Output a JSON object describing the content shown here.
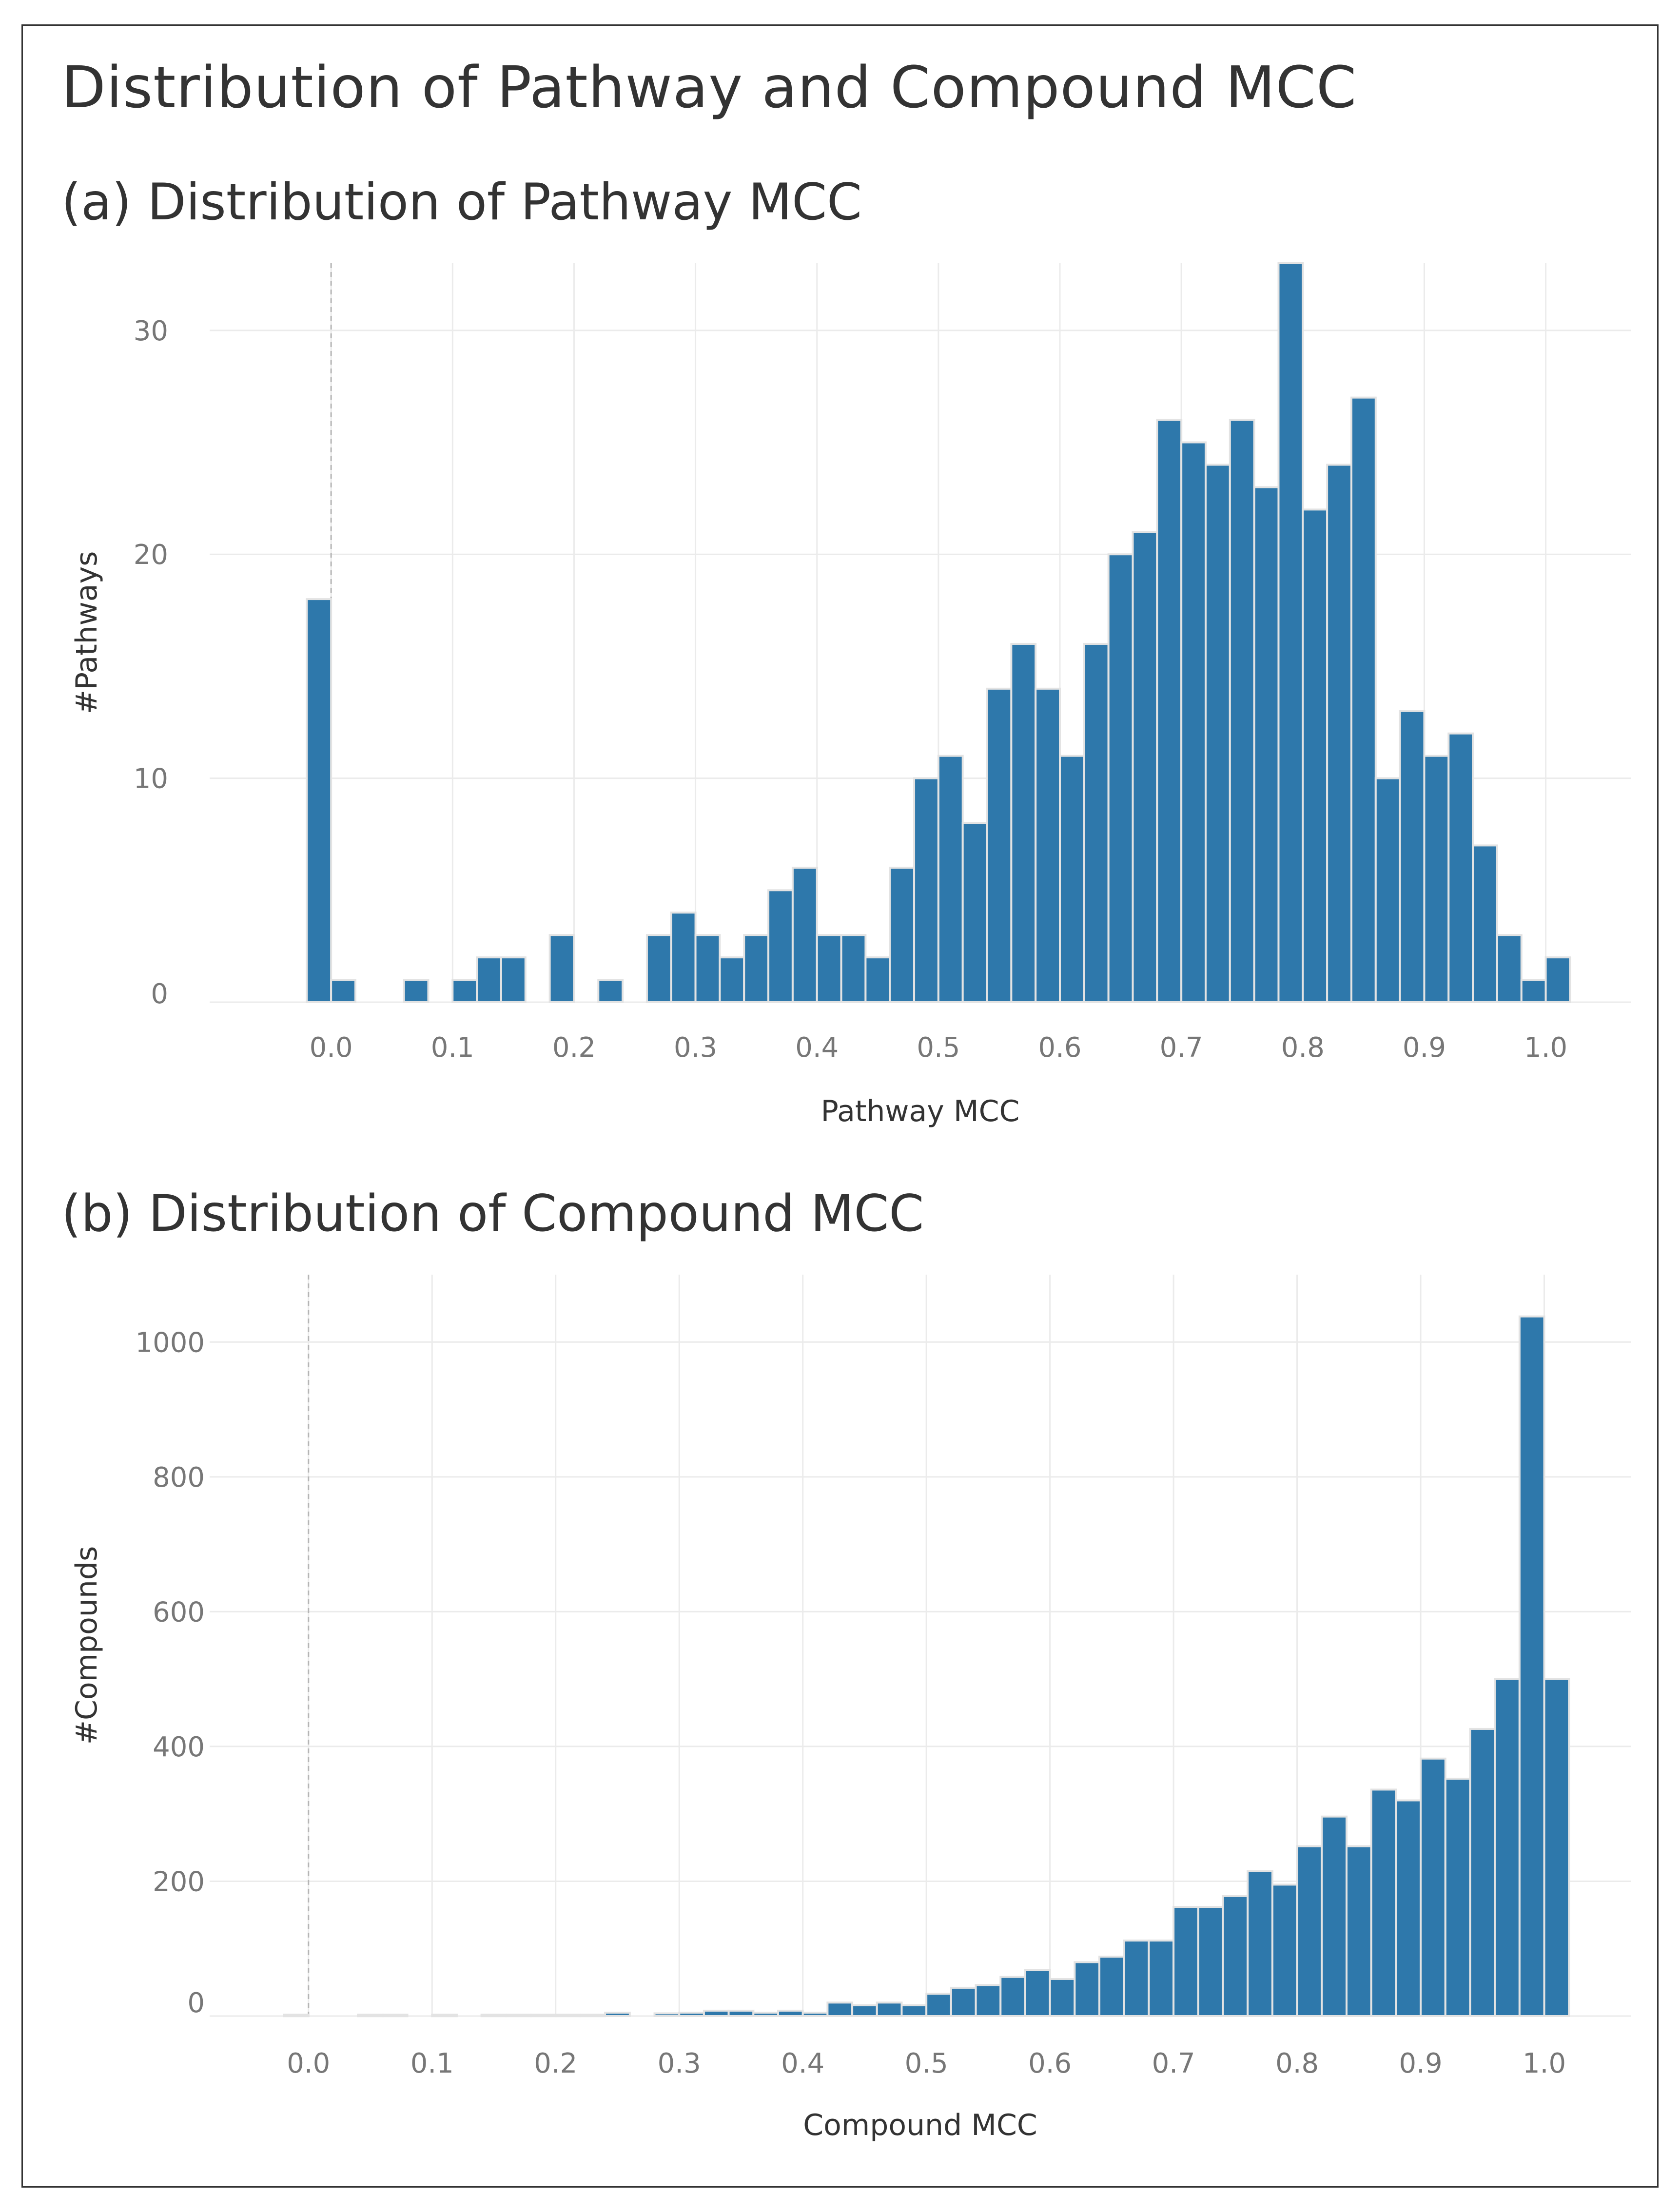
{
  "title": "Distribution of Pathway and Compound MCC",
  "chart_data": [
    {
      "type": "bar",
      "panel": "a",
      "tag": "(a)",
      "title": "Distribution of Pathway MCC",
      "xlabel": "Pathway MCC",
      "ylabel": "#Pathways",
      "xlim": [
        -0.1,
        1.07
      ],
      "ylim": [
        0,
        33
      ],
      "bin_width": 0.02,
      "xticks": [
        0.0,
        0.1,
        0.2,
        0.3,
        0.4,
        0.5,
        0.6,
        0.7,
        0.8,
        0.9,
        1.0
      ],
      "xtick_labels": [
        "0.0",
        "0.1",
        "0.2",
        "0.3",
        "0.4",
        "0.5",
        "0.6",
        "0.7",
        "0.8",
        "0.9",
        "1.0"
      ],
      "yticks": [
        0,
        10,
        20,
        30
      ],
      "ytick_labels": [
        "0",
        "10",
        "20",
        "30"
      ],
      "bar_color": "#2e78ab",
      "bins": [
        -0.01,
        0.01,
        0.07,
        0.11,
        0.13,
        0.15,
        0.19,
        0.23,
        0.27,
        0.29,
        0.31,
        0.33,
        0.35,
        0.37,
        0.39,
        0.41,
        0.43,
        0.45,
        0.47,
        0.49,
        0.51,
        0.53,
        0.55,
        0.57,
        0.59,
        0.61,
        0.63,
        0.65,
        0.67,
        0.69,
        0.71,
        0.73,
        0.75,
        0.77,
        0.79,
        0.81,
        0.83,
        0.85,
        0.87,
        0.89,
        0.91,
        0.93,
        0.95,
        0.97,
        0.99,
        1.01
      ],
      "values": [
        18,
        1,
        1,
        1,
        2,
        2,
        3,
        1,
        3,
        4,
        3,
        2,
        3,
        5,
        6,
        3,
        3,
        2,
        6,
        10,
        11,
        8,
        14,
        16,
        14,
        11,
        16,
        20,
        21,
        26,
        25,
        24,
        26,
        23,
        33,
        22,
        24,
        27,
        10,
        13,
        11,
        12,
        7,
        3,
        1,
        2
      ]
    },
    {
      "type": "bar",
      "panel": "b",
      "tag": "(b)",
      "title": "Distribution of Compound MCC",
      "xlabel": "Compound MCC",
      "ylabel": "#Compounds",
      "xlim": [
        -0.08,
        1.07
      ],
      "ylim": [
        0,
        1100
      ],
      "bin_width": 0.02,
      "xticks": [
        0.0,
        0.1,
        0.2,
        0.3,
        0.4,
        0.5,
        0.6,
        0.7,
        0.8,
        0.9,
        1.0
      ],
      "xtick_labels": [
        "0.0",
        "0.1",
        "0.2",
        "0.3",
        "0.4",
        "0.5",
        "0.6",
        "0.7",
        "0.8",
        "0.9",
        "1.0"
      ],
      "yticks": [
        0,
        200,
        400,
        600,
        800,
        1000
      ],
      "ytick_labels": [
        "0",
        "200",
        "400",
        "600",
        "800",
        "1000"
      ],
      "bar_color": "#2e78ab",
      "bins": [
        -0.01,
        0.05,
        0.07,
        0.11,
        0.15,
        0.17,
        0.19,
        0.21,
        0.23,
        0.25,
        0.29,
        0.31,
        0.33,
        0.35,
        0.37,
        0.39,
        0.41,
        0.43,
        0.45,
        0.47,
        0.49,
        0.51,
        0.53,
        0.55,
        0.57,
        0.59,
        0.61,
        0.63,
        0.65,
        0.67,
        0.69,
        0.71,
        0.73,
        0.75,
        0.77,
        0.79,
        0.81,
        0.83,
        0.85,
        0.87,
        0.89,
        0.91,
        0.93,
        0.95,
        0.97,
        0.99,
        1.01
      ],
      "values": [
        2,
        2,
        2,
        2,
        2,
        2,
        2,
        2,
        2,
        5,
        4,
        5,
        8,
        8,
        5,
        8,
        5,
        20,
        16,
        20,
        16,
        33,
        42,
        46,
        58,
        68,
        55,
        80,
        88,
        112,
        112,
        162,
        162,
        178,
        215,
        195,
        252,
        296,
        252,
        336,
        320,
        382,
        352,
        426,
        500,
        1038,
        500
      ]
    }
  ]
}
